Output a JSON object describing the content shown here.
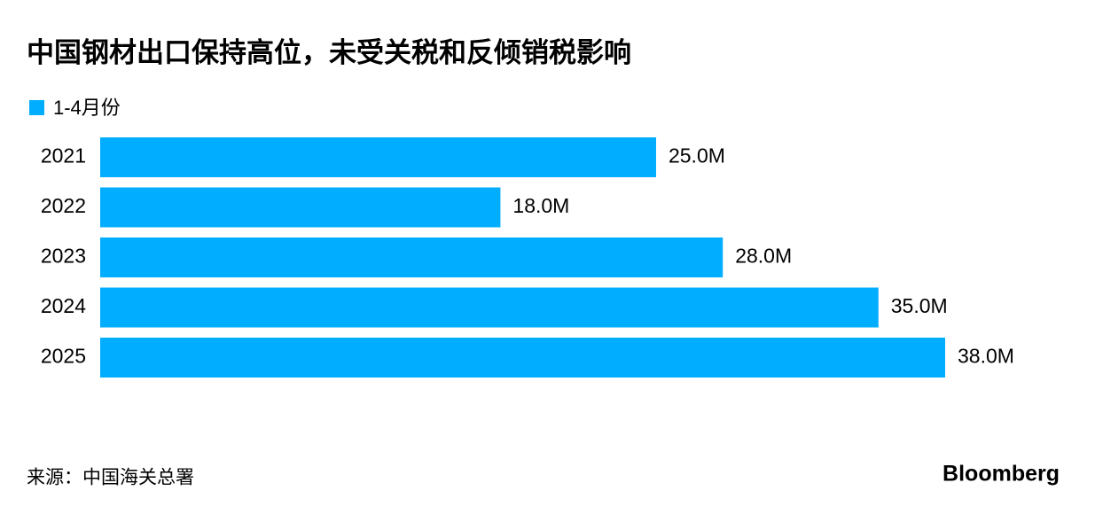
{
  "chart_data": {
    "type": "bar",
    "orientation": "horizontal",
    "title": "中国钢材出口保持高位，未受关税和反倾销税影响",
    "categories": [
      "2021",
      "2022",
      "2023",
      "2024",
      "2025"
    ],
    "series": [
      {
        "name": "1-4月份",
        "color": "#00adff",
        "values": [
          25000000,
          18000000,
          28000000,
          35000000,
          38000000
        ],
        "value_labels": [
          "25.0M",
          "18.0M",
          "28.0M",
          "35.0M",
          "38.0M"
        ]
      }
    ],
    "source": "来源：中国海关总署",
    "brand": "Bloomberg"
  }
}
